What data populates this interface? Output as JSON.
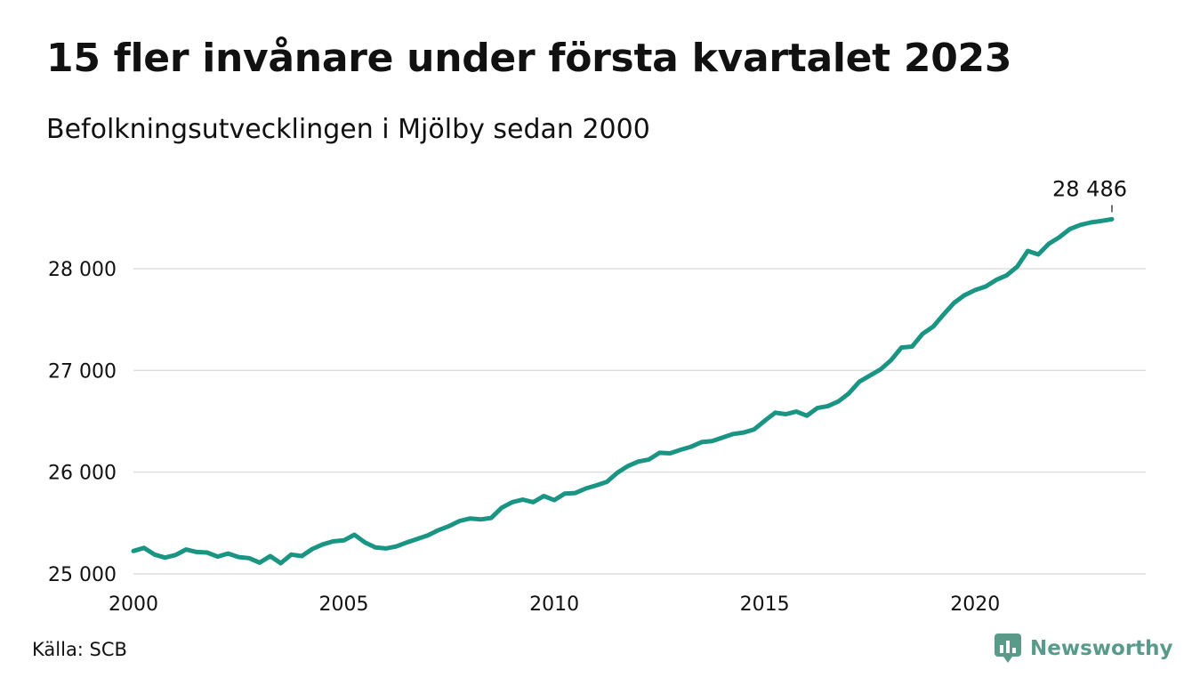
{
  "header": {
    "title": "15 fler invånare under första kvartalet 2023",
    "subtitle": "Befolkningsutvecklingen i Mjölby sedan 2000"
  },
  "footer": {
    "source": "Källa: SCB",
    "brand": "Newsworthy",
    "brand_color": "#5a9a8a",
    "brand_icon": "bar-chart-speech-bubble-icon"
  },
  "chart_data": {
    "type": "line",
    "line_color": "#1a9483",
    "grid": "horizontal",
    "xlim": [
      2000,
      2023.25
    ],
    "ylim": [
      25000,
      28486
    ],
    "x_ticks": [
      {
        "value": 2000,
        "label": "2000"
      },
      {
        "value": 2005,
        "label": "2005"
      },
      {
        "value": 2010,
        "label": "2010"
      },
      {
        "value": 2015,
        "label": "2015"
      },
      {
        "value": 2020,
        "label": "2020"
      }
    ],
    "y_ticks": [
      {
        "value": 25000,
        "label": "25 000"
      },
      {
        "value": 26000,
        "label": "26 000"
      },
      {
        "value": 27000,
        "label": "27 000"
      },
      {
        "value": 28000,
        "label": "28 000"
      }
    ],
    "end_label": "28 486",
    "series": [
      {
        "x": [
          2000.0,
          2000.25,
          2000.5,
          2000.75,
          2001.0,
          2001.25,
          2001.5,
          2001.75,
          2002.0,
          2002.25,
          2002.5,
          2002.75,
          2003.0,
          2003.25,
          2003.5,
          2003.75,
          2004.0,
          2004.25,
          2004.5,
          2004.75,
          2005.0,
          2005.25,
          2005.5,
          2005.75,
          2006.0,
          2006.25,
          2006.5,
          2006.75,
          2007.0,
          2007.25,
          2007.5,
          2007.75,
          2008.0,
          2008.25,
          2008.5,
          2008.75,
          2009.0,
          2009.25,
          2009.5,
          2009.75,
          2010.0,
          2010.25,
          2010.5,
          2010.75,
          2011.0,
          2011.25,
          2011.5,
          2011.75,
          2012.0,
          2012.25,
          2012.5,
          2012.75,
          2013.0,
          2013.25,
          2013.5,
          2013.75,
          2014.0,
          2014.25,
          2014.5,
          2014.75,
          2015.0,
          2015.25,
          2015.5,
          2015.75,
          2016.0,
          2016.25,
          2016.5,
          2016.75,
          2017.0,
          2017.25,
          2017.5,
          2017.75,
          2018.0,
          2018.25,
          2018.5,
          2018.75,
          2019.0,
          2019.25,
          2019.5,
          2019.75,
          2020.0,
          2020.25,
          2020.5,
          2020.75,
          2021.0,
          2021.25,
          2021.5,
          2021.75,
          2022.0,
          2022.25,
          2022.5,
          2022.75,
          2023.0,
          2023.25
        ],
        "values": [
          25225,
          25255,
          25190,
          25160,
          25185,
          25240,
          25215,
          25210,
          25170,
          25200,
          25165,
          25155,
          25110,
          25175,
          25105,
          25190,
          25175,
          25245,
          25290,
          25320,
          25330,
          25385,
          25310,
          25260,
          25250,
          25270,
          25310,
          25345,
          25380,
          25430,
          25470,
          25520,
          25545,
          25535,
          25550,
          25650,
          25705,
          25730,
          25705,
          25765,
          25725,
          25790,
          25795,
          25840,
          25870,
          25905,
          25995,
          26060,
          26105,
          26125,
          26190,
          26185,
          26220,
          26250,
          26295,
          26305,
          26340,
          26375,
          26390,
          26420,
          26505,
          26585,
          26570,
          26595,
          26555,
          26630,
          26650,
          26695,
          26775,
          26890,
          26950,
          27010,
          27100,
          27225,
          27235,
          27360,
          27430,
          27550,
          27665,
          27740,
          27790,
          27825,
          27890,
          27935,
          28020,
          28175,
          28140,
          28245,
          28310,
          28390,
          28430,
          28455,
          28470,
          28486
        ]
      }
    ]
  }
}
